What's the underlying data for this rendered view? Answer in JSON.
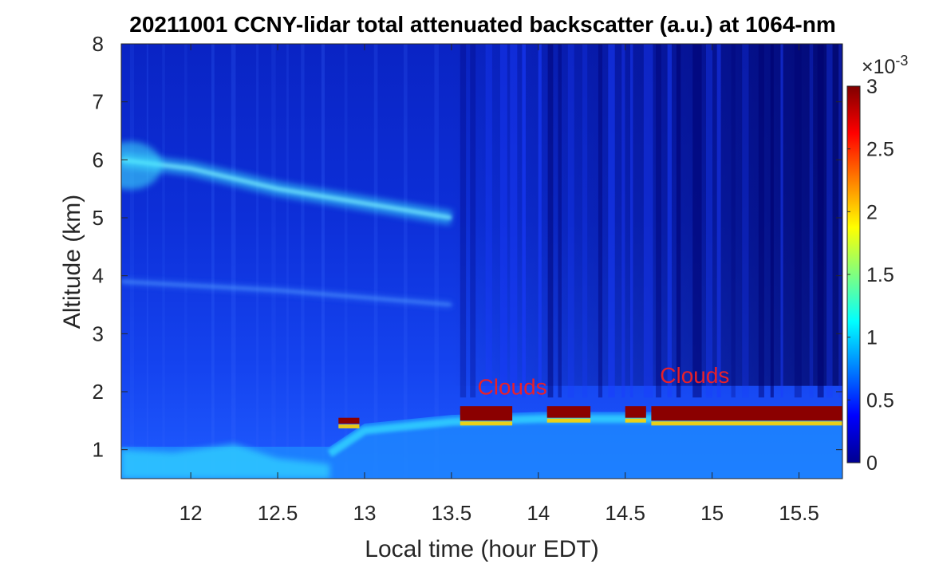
{
  "chart_data": {
    "type": "heatmap",
    "title": "20211001 CCNY-lidar total attenuated backscatter (a.u.) at 1064-nm",
    "xlabel": "Local time (hour EDT)",
    "ylabel": "Altitude (km)",
    "xlim": [
      11.6,
      15.75
    ],
    "ylim": [
      0.5,
      8
    ],
    "xticks": [
      12,
      12.5,
      13,
      13.5,
      14,
      14.5,
      15,
      15.5
    ],
    "xtick_labels": [
      "12",
      "12.5",
      "13",
      "13.5",
      "14",
      "14.5",
      "15",
      "15.5"
    ],
    "yticks": [
      1,
      2,
      3,
      4,
      5,
      6,
      7,
      8
    ],
    "ytick_labels": [
      "1",
      "2",
      "3",
      "4",
      "5",
      "6",
      "7",
      "8"
    ],
    "colorbar": {
      "colormap": "jet",
      "range": [
        0,
        3
      ],
      "multiplier": "×10",
      "multiplier_exponent": "-3",
      "ticks": [
        0,
        0.5,
        1,
        1.5,
        2,
        2.5,
        3
      ],
      "tick_labels": [
        "0",
        "0.5",
        "1",
        "1.5",
        "2",
        "2.5",
        "3"
      ]
    },
    "annotations": [
      {
        "text": "Clouds",
        "x": 13.85,
        "y": 1.95
      },
      {
        "text": "Clouds",
        "x": 14.9,
        "y": 2.15
      }
    ],
    "features": {
      "boundary_layer_top": {
        "x": [
          11.6,
          12.8,
          13.0,
          13.5,
          14.0,
          15.75
        ],
        "y": [
          1.05,
          1.05,
          1.45,
          1.6,
          1.65,
          1.65
        ]
      },
      "elevated_aerosol_layers": [
        {
          "x": [
            11.6,
            12.0,
            12.5,
            13.0,
            13.5
          ],
          "y": [
            6.0,
            5.85,
            5.5,
            5.25,
            5.0
          ]
        },
        {
          "x": [
            11.6,
            12.5,
            13.5
          ],
          "y": [
            3.9,
            3.75,
            3.5
          ]
        }
      ],
      "cloud_segments": [
        {
          "x": [
            12.85,
            12.97
          ],
          "y_base": 1.45,
          "y_top": 1.55
        },
        {
          "x": [
            13.55,
            13.85
          ],
          "y_base": 1.5,
          "y_top": 1.75
        },
        {
          "x": [
            14.05,
            14.3
          ],
          "y_base": 1.55,
          "y_top": 1.75
        },
        {
          "x": [
            14.5,
            14.62
          ],
          "y_base": 1.55,
          "y_top": 1.75
        },
        {
          "x": [
            14.65,
            15.75
          ],
          "y_base": 1.5,
          "y_top": 1.75
        }
      ]
    }
  }
}
